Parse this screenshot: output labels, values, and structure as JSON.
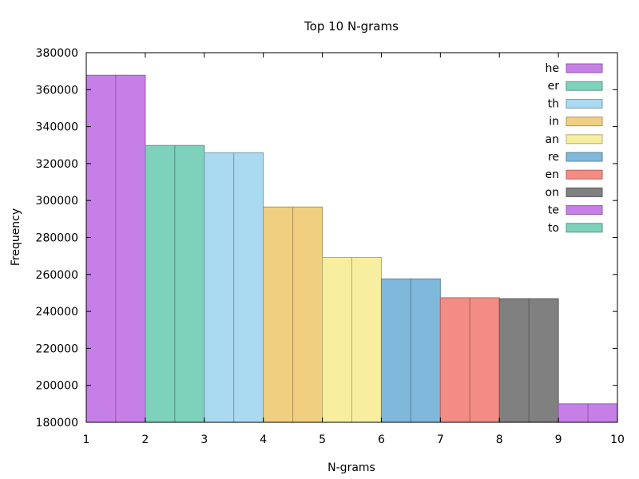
{
  "chart_data": {
    "type": "bar",
    "title": "Top 10 N-grams",
    "xlabel": "N-grams",
    "ylabel": "Frequency",
    "xlim": [
      1,
      10
    ],
    "ylim": [
      180000,
      380000
    ],
    "x_ticks": [
      "1",
      "2",
      "3",
      "4",
      "5",
      "6",
      "7",
      "8",
      "9",
      "10"
    ],
    "y_ticks": [
      "180000",
      "200000",
      "220000",
      "240000",
      "260000",
      "280000",
      "300000",
      "320000",
      "340000",
      "360000",
      "380000"
    ],
    "legend_position": "top-right",
    "grid": false,
    "series": [
      {
        "name": "he",
        "value": 367800,
        "color": "#c77fe8"
      },
      {
        "name": "er",
        "value": 329800,
        "color": "#7ed1ba"
      },
      {
        "name": "th",
        "value": 325900,
        "color": "#aad9f2"
      },
      {
        "name": "in",
        "value": 296500,
        "color": "#f0cf80"
      },
      {
        "name": "an",
        "value": 269200,
        "color": "#f7ef9f"
      },
      {
        "name": "re",
        "value": 257600,
        "color": "#80b8db"
      },
      {
        "name": "en",
        "value": 247400,
        "color": "#f28c84"
      },
      {
        "name": "on",
        "value": 246900,
        "color": "#808080"
      },
      {
        "name": "te",
        "value": 190000,
        "color": "#c77fe8"
      },
      {
        "name": "to",
        "value": null,
        "color": "#7ed1ba"
      }
    ]
  }
}
